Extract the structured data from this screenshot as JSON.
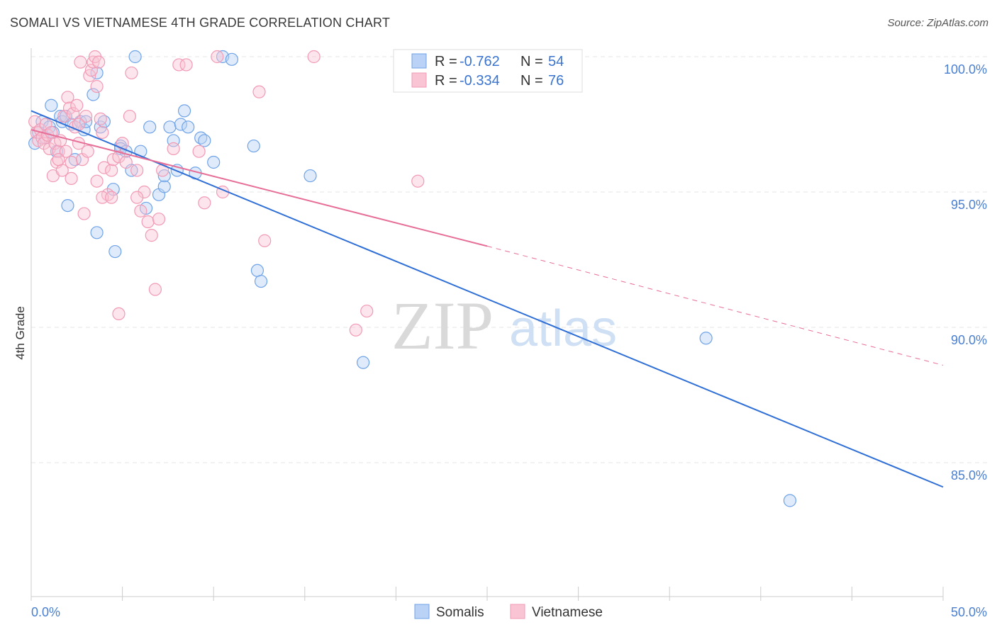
{
  "title": "SOMALI VS VIETNAMESE 4TH GRADE CORRELATION CHART",
  "source": "Source: ZipAtlas.com",
  "watermark": {
    "zip": "ZIP",
    "atlas": "atlas"
  },
  "chart_data": {
    "type": "scatter",
    "title": "SOMALI VS VIETNAMESE 4TH GRADE CORRELATION CHART",
    "xlabel": "",
    "ylabel": "4th Grade",
    "xlim": [
      0,
      50
    ],
    "ylim": [
      80.5,
      101
    ],
    "x_tick_labels": [
      {
        "value": 0,
        "label": "0.0%"
      },
      {
        "value": 50,
        "label": "50.0%"
      }
    ],
    "y_ticks": [
      {
        "value": 100,
        "label": "100.0%"
      },
      {
        "value": 95,
        "label": "95.0%"
      },
      {
        "value": 90,
        "label": "90.0%"
      },
      {
        "value": 85,
        "label": "85.0%"
      }
    ],
    "legend": [
      {
        "name": "Somalis",
        "r_label": "R =",
        "r_value": "-0.762",
        "n_label": "N =",
        "n_value": "54",
        "color": "#6fa3e8",
        "fill": "#b9d2f5"
      },
      {
        "name": "Vietnamese",
        "r_label": "R =",
        "r_value": "-0.334",
        "n_label": "N =",
        "n_value": "76",
        "color": "#f29ab5",
        "fill": "#f9c5d5"
      }
    ],
    "series": [
      {
        "name": "Somalis",
        "color": "#6fa3e8",
        "trend": {
          "x0": 0,
          "y0": 98.0,
          "x1": 50,
          "y1": 84.1,
          "color": "#2f6fd6"
        },
        "points": [
          [
            0.2,
            96.8
          ],
          [
            0.4,
            97.2
          ],
          [
            0.6,
            97.6
          ],
          [
            0.8,
            97.0
          ],
          [
            1.0,
            97.4
          ],
          [
            1.1,
            98.2
          ],
          [
            1.2,
            97.2
          ],
          [
            1.4,
            96.5
          ],
          [
            1.6,
            97.8
          ],
          [
            1.7,
            97.6
          ],
          [
            1.9,
            97.8
          ],
          [
            2.2,
            97.5
          ],
          [
            2.4,
            96.2
          ],
          [
            2.7,
            97.6
          ],
          [
            2.9,
            97.3
          ],
          [
            3.0,
            97.6
          ],
          [
            3.4,
            98.6
          ],
          [
            3.6,
            99.4
          ],
          [
            3.8,
            97.4
          ],
          [
            4.0,
            97.6
          ],
          [
            4.9,
            96.7
          ],
          [
            4.9,
            96.6
          ],
          [
            5.2,
            96.5
          ],
          [
            5.5,
            95.8
          ],
          [
            5.7,
            100.0
          ],
          [
            6.0,
            96.5
          ],
          [
            6.5,
            97.4
          ],
          [
            7.0,
            94.9
          ],
          [
            7.3,
            95.2
          ],
          [
            7.3,
            95.6
          ],
          [
            7.6,
            97.4
          ],
          [
            7.8,
            96.9
          ],
          [
            8.0,
            95.8
          ],
          [
            8.2,
            97.5
          ],
          [
            8.4,
            98.0
          ],
          [
            8.6,
            97.4
          ],
          [
            9.0,
            95.7
          ],
          [
            9.3,
            97.0
          ],
          [
            9.5,
            96.9
          ],
          [
            10.0,
            96.1
          ],
          [
            10.5,
            100.0
          ],
          [
            11.0,
            99.9
          ],
          [
            12.2,
            96.7
          ],
          [
            12.4,
            92.1
          ],
          [
            12.6,
            91.7
          ],
          [
            15.3,
            95.6
          ],
          [
            18.2,
            88.7
          ],
          [
            37.0,
            89.6
          ],
          [
            41.6,
            83.6
          ],
          [
            2.0,
            94.5
          ],
          [
            3.6,
            93.5
          ],
          [
            4.6,
            92.8
          ],
          [
            4.5,
            95.1
          ],
          [
            6.3,
            94.4
          ]
        ]
      },
      {
        "name": "Vietnamese",
        "color": "#f29ab5",
        "trend": {
          "x0": 0,
          "y0": 97.3,
          "x1": 25,
          "y1": 93.0,
          "dash_x1": 50,
          "dash_y1": 88.6,
          "color": "#e76e97"
        },
        "points": [
          [
            0.2,
            97.6
          ],
          [
            0.3,
            97.2
          ],
          [
            0.4,
            96.9
          ],
          [
            0.5,
            97.3
          ],
          [
            0.6,
            97.0
          ],
          [
            0.7,
            96.8
          ],
          [
            0.8,
            97.5
          ],
          [
            0.9,
            97.1
          ],
          [
            1.0,
            96.6
          ],
          [
            1.1,
            97.2
          ],
          [
            1.2,
            95.6
          ],
          [
            1.3,
            96.8
          ],
          [
            1.4,
            96.1
          ],
          [
            1.5,
            96.5
          ],
          [
            1.6,
            96.9
          ],
          [
            1.7,
            95.8
          ],
          [
            1.8,
            97.8
          ],
          [
            2.0,
            98.5
          ],
          [
            2.1,
            98.1
          ],
          [
            2.2,
            96.1
          ],
          [
            2.3,
            97.9
          ],
          [
            2.4,
            97.4
          ],
          [
            2.5,
            98.2
          ],
          [
            2.6,
            96.8
          ],
          [
            2.7,
            99.8
          ],
          [
            2.8,
            96.2
          ],
          [
            3.0,
            97.8
          ],
          [
            3.1,
            96.5
          ],
          [
            3.2,
            99.3
          ],
          [
            3.3,
            99.5
          ],
          [
            3.4,
            99.8
          ],
          [
            3.5,
            100.0
          ],
          [
            3.6,
            98.9
          ],
          [
            3.7,
            99.8
          ],
          [
            3.8,
            97.7
          ],
          [
            3.9,
            97.2
          ],
          [
            4.0,
            95.9
          ],
          [
            4.2,
            94.9
          ],
          [
            4.4,
            95.8
          ],
          [
            4.5,
            96.2
          ],
          [
            4.8,
            96.3
          ],
          [
            5.0,
            96.8
          ],
          [
            5.2,
            96.1
          ],
          [
            5.4,
            97.8
          ],
          [
            5.5,
            99.4
          ],
          [
            5.8,
            95.8
          ],
          [
            6.0,
            94.3
          ],
          [
            6.2,
            95.0
          ],
          [
            6.4,
            93.9
          ],
          [
            6.6,
            93.4
          ],
          [
            6.8,
            91.4
          ],
          [
            7.0,
            94.0
          ],
          [
            7.2,
            95.8
          ],
          [
            7.8,
            96.6
          ],
          [
            8.1,
            99.7
          ],
          [
            8.5,
            99.7
          ],
          [
            9.2,
            96.5
          ],
          [
            9.5,
            94.6
          ],
          [
            10.2,
            100.0
          ],
          [
            10.5,
            95.0
          ],
          [
            12.5,
            98.7
          ],
          [
            12.8,
            93.2
          ],
          [
            15.5,
            100.0
          ],
          [
            17.8,
            89.9
          ],
          [
            18.4,
            90.6
          ],
          [
            21.2,
            95.4
          ],
          [
            4.8,
            90.5
          ],
          [
            3.6,
            95.4
          ],
          [
            3.9,
            94.8
          ],
          [
            2.9,
            94.2
          ],
          [
            2.2,
            95.5
          ],
          [
            1.9,
            96.5
          ],
          [
            4.4,
            94.8
          ],
          [
            5.8,
            94.8
          ],
          [
            2.6,
            97.5
          ],
          [
            1.5,
            96.2
          ]
        ]
      }
    ]
  }
}
